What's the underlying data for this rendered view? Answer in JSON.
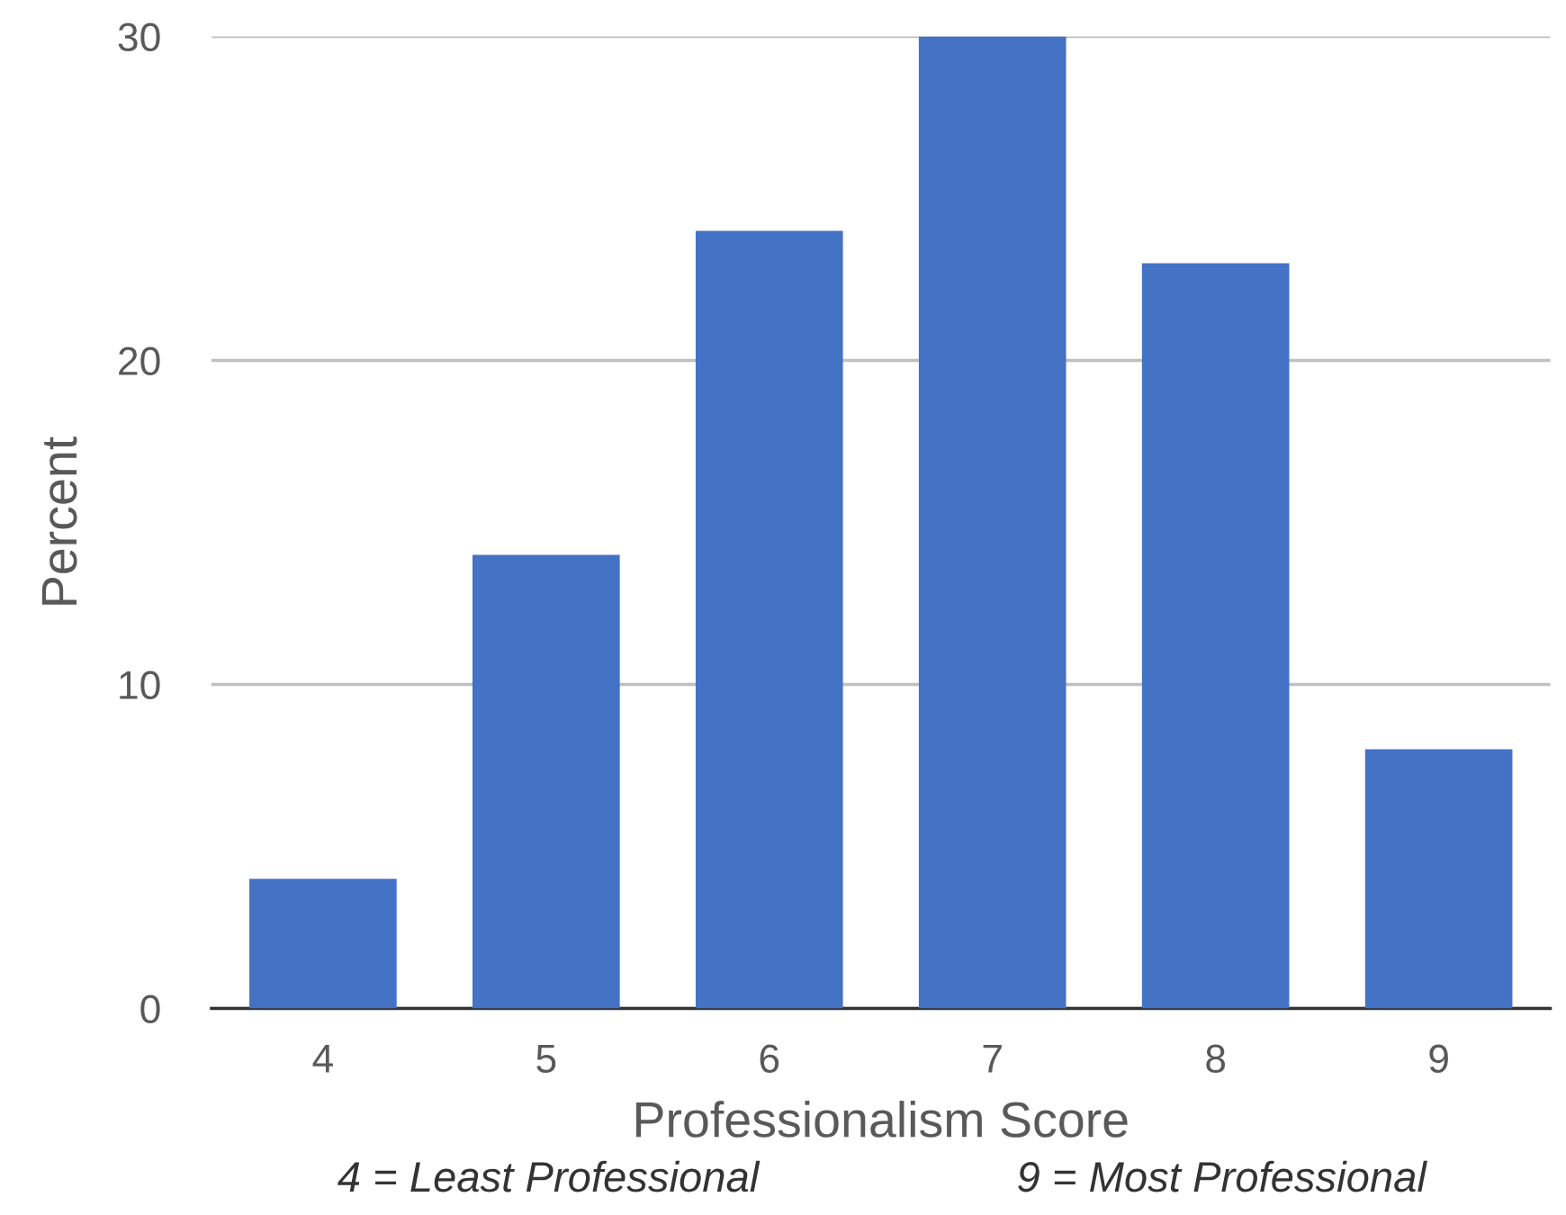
{
  "chart_data": {
    "type": "bar",
    "xlabel": "Professionalism Score",
    "ylabel": "Percent",
    "categories": [
      "4",
      "5",
      "6",
      "7",
      "8",
      "9"
    ],
    "values": [
      4,
      14,
      24,
      30,
      23,
      8
    ],
    "color": "#4472c4",
    "ylim": [
      0,
      30
    ],
    "yticks": [
      0,
      10,
      20,
      30
    ],
    "grid": "y",
    "legend": false,
    "annotations": [
      "4 = Least Professional",
      "9 = Most Professional"
    ]
  }
}
